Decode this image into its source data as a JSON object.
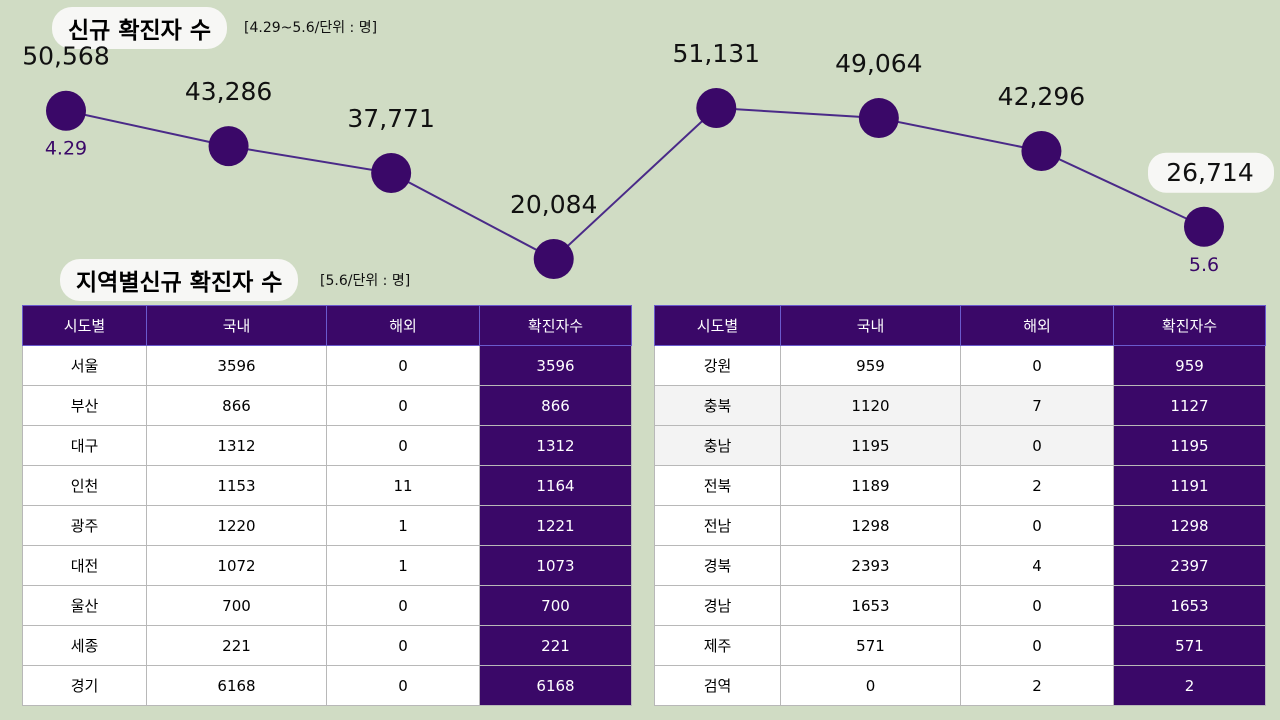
{
  "chart_data": {
    "type": "line",
    "title": "신규 확진자 수",
    "subtitle": "[4.29~5.6/단위 : 명]",
    "categories": [
      "4.29",
      null,
      null,
      null,
      null,
      null,
      null,
      "5.6"
    ],
    "values": [
      50568,
      43286,
      37771,
      20084,
      51131,
      49064,
      42296,
      26714
    ],
    "value_labels": [
      "50,568",
      "43,286",
      "37,771",
      "20,084",
      "51,131",
      "49,064",
      "42,296",
      "26,714"
    ],
    "color": "#3a0868",
    "line_color": "#4a2a88"
  },
  "tables_title": "지역별신규 확진자 수",
  "tables_subtitle": "[5.6/단위 : 명]",
  "tables": [
    {
      "header": [
        "시도별",
        "국내",
        "해외",
        "확진자수"
      ],
      "rows": [
        [
          "서울",
          3596,
          0,
          3596
        ],
        [
          "부산",
          866,
          0,
          866
        ],
        [
          "대구",
          1312,
          0,
          1312
        ],
        [
          "인천",
          1153,
          11,
          1164
        ],
        [
          "광주",
          1220,
          1,
          1221
        ],
        [
          "대전",
          1072,
          1,
          1073
        ],
        [
          "울산",
          700,
          0,
          700
        ],
        [
          "세종",
          221,
          0,
          221
        ],
        [
          "경기",
          6168,
          0,
          6168
        ]
      ]
    },
    {
      "header": [
        "시도별",
        "국내",
        "해외",
        "확진자수"
      ],
      "rows": [
        [
          "강원",
          959,
          0,
          959
        ],
        [
          "충북",
          1120,
          7,
          1127
        ],
        [
          "충남",
          1195,
          0,
          1195
        ],
        [
          "전북",
          1189,
          2,
          1191
        ],
        [
          "전남",
          1298,
          0,
          1298
        ],
        [
          "경북",
          2393,
          4,
          2397
        ],
        [
          "경남",
          1653,
          0,
          1653
        ],
        [
          "제주",
          571,
          0,
          571
        ],
        [
          "검역",
          0,
          2,
          2
        ]
      ]
    }
  ]
}
